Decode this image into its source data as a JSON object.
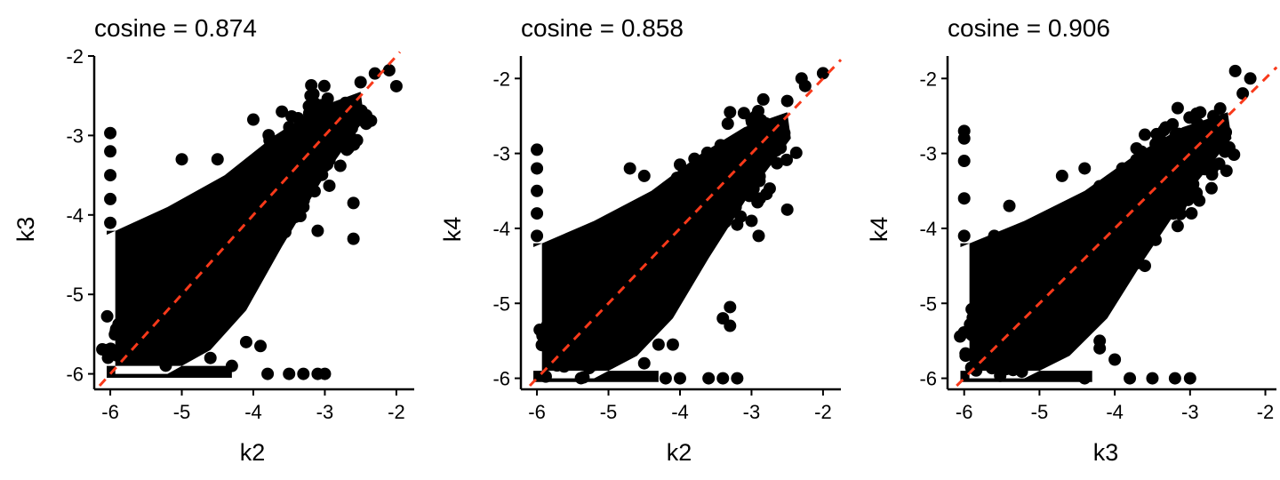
{
  "colors": {
    "points": "#000000",
    "reference_line": "#F8391A",
    "axis": "#000000",
    "background": "#FFFFFF"
  },
  "chart_data": [
    {
      "type": "scatter",
      "title": "cosine = 0.874",
      "xlabel": "k2",
      "ylabel": "k3",
      "xlim": [
        -6.15,
        -1.8
      ],
      "ylim": [
        -6.15,
        -2.0
      ],
      "xticks": [
        -6,
        -5,
        -4,
        -3,
        -2
      ],
      "yticks": [
        -6,
        -5,
        -4,
        -3,
        -2
      ],
      "xtick_labels": [
        "-6",
        "-5",
        "-4",
        "-3",
        "-2"
      ],
      "ytick_labels": [
        "-6",
        "-5",
        "-4",
        "-3",
        "-2"
      ],
      "reference_line": {
        "slope": 1,
        "intercept": 0,
        "style": "dashed"
      },
      "points": [
        [
          -6.0,
          -2.97
        ],
        [
          -6.0,
          -3.2
        ],
        [
          -6.0,
          -3.5
        ],
        [
          -6.0,
          -3.8
        ],
        [
          -6.0,
          -4.1
        ],
        [
          -2.0,
          -2.38
        ],
        [
          -2.1,
          -2.18
        ],
        [
          -2.3,
          -2.22
        ],
        [
          -2.5,
          -2.33
        ],
        [
          -2.7,
          -2.6
        ],
        [
          -4.0,
          -2.8
        ],
        [
          -3.6,
          -2.7
        ],
        [
          -3.2,
          -2.5
        ],
        [
          -4.5,
          -3.3
        ],
        [
          -5.0,
          -3.3
        ],
        [
          -3.1,
          -4.2
        ],
        [
          -2.6,
          -4.3
        ],
        [
          -2.6,
          -3.85
        ],
        [
          -3.0,
          -3.3
        ],
        [
          -3.3,
          -3.9
        ],
        [
          -4.6,
          -5.5
        ],
        [
          -4.6,
          -5.8
        ],
        [
          -4.3,
          -5.9
        ],
        [
          -4.1,
          -5.6
        ],
        [
          -3.9,
          -5.65
        ],
        [
          -3.5,
          -6.0
        ],
        [
          -3.3,
          -6.0
        ],
        [
          -3.1,
          -6.0
        ],
        [
          -3.0,
          -6.0
        ],
        [
          -3.8,
          -6.0
        ],
        [
          -5.0,
          -5.0
        ],
        [
          -4.5,
          -4.5
        ],
        [
          -4.0,
          -4.0
        ],
        [
          -3.5,
          -3.5
        ],
        [
          -5.5,
          -5.2
        ]
      ]
    },
    {
      "type": "scatter",
      "title": "cosine = 0.858",
      "xlabel": "k2",
      "ylabel": "k4",
      "xlim": [
        -6.15,
        -1.8
      ],
      "ylim": [
        -6.1,
        -1.7
      ],
      "xticks": [
        -6,
        -5,
        -4,
        -3,
        -2
      ],
      "yticks": [
        -6,
        -5,
        -4,
        -3,
        -2
      ],
      "xtick_labels": [
        "-6",
        "-5",
        "-4",
        "-3",
        "-2"
      ],
      "ytick_labels": [
        "-6",
        "-5",
        "-4",
        "-3",
        "-2"
      ],
      "reference_line": {
        "slope": 1,
        "intercept": 0,
        "style": "dashed"
      },
      "points": [
        [
          -6.0,
          -2.95
        ],
        [
          -6.0,
          -3.2
        ],
        [
          -6.0,
          -3.5
        ],
        [
          -6.0,
          -3.8
        ],
        [
          -6.0,
          -4.1
        ],
        [
          -2.0,
          -1.93
        ],
        [
          -2.3,
          -2.0
        ],
        [
          -2.25,
          -2.1
        ],
        [
          -2.5,
          -2.3
        ],
        [
          -2.8,
          -2.6
        ],
        [
          -3.3,
          -2.45
        ],
        [
          -3.0,
          -2.55
        ],
        [
          -4.7,
          -3.2
        ],
        [
          -4.0,
          -3.15
        ],
        [
          -4.5,
          -3.3
        ],
        [
          -2.5,
          -3.75
        ],
        [
          -2.9,
          -4.1
        ],
        [
          -3.0,
          -3.9
        ],
        [
          -3.2,
          -3.95
        ],
        [
          -3.3,
          -5.3
        ],
        [
          -3.4,
          -5.2
        ],
        [
          -3.3,
          -5.05
        ],
        [
          -4.1,
          -5.55
        ],
        [
          -4.3,
          -5.55
        ],
        [
          -4.5,
          -5.8
        ],
        [
          -3.4,
          -6.0
        ],
        [
          -3.2,
          -6.0
        ],
        [
          -3.6,
          -6.0
        ],
        [
          -4.0,
          -6.0
        ],
        [
          -4.2,
          -6.0
        ],
        [
          -5.0,
          -5.0
        ],
        [
          -4.5,
          -4.5
        ],
        [
          -4.0,
          -4.0
        ],
        [
          -3.5,
          -3.5
        ],
        [
          -5.5,
          -5.2
        ]
      ]
    },
    {
      "type": "scatter",
      "title": "cosine = 0.906",
      "xlabel": "k3",
      "ylabel": "k4",
      "xlim": [
        -6.15,
        -1.9
      ],
      "ylim": [
        -6.1,
        -1.7
      ],
      "xticks": [
        -6,
        -5,
        -4,
        -3,
        -2
      ],
      "yticks": [
        -6,
        -5,
        -4,
        -3,
        -2
      ],
      "xtick_labels": [
        "-6",
        "-5",
        "-4",
        "-3",
        "-2"
      ],
      "ytick_labels": [
        "-6",
        "-5",
        "-4",
        "-3",
        "-2"
      ],
      "reference_line": {
        "slope": 1,
        "intercept": 0,
        "style": "dashed"
      },
      "points": [
        [
          -6.0,
          -2.7
        ],
        [
          -6.0,
          -2.8
        ],
        [
          -6.0,
          -3.1
        ],
        [
          -6.0,
          -3.6
        ],
        [
          -6.0,
          -4.1
        ],
        [
          -2.4,
          -1.9
        ],
        [
          -2.2,
          -2.0
        ],
        [
          -2.3,
          -2.2
        ],
        [
          -2.6,
          -2.4
        ],
        [
          -2.9,
          -2.6
        ],
        [
          -3.6,
          -2.75
        ],
        [
          -3.4,
          -2.8
        ],
        [
          -3.9,
          -3.2
        ],
        [
          -4.4,
          -3.2
        ],
        [
          -4.7,
          -3.3
        ],
        [
          -5.4,
          -3.7
        ],
        [
          -5.6,
          -4.1
        ],
        [
          -5.5,
          -4.3
        ],
        [
          -2.9,
          -3.1
        ],
        [
          -3.6,
          -4.5
        ],
        [
          -4.2,
          -5.6
        ],
        [
          -4.0,
          -5.75
        ],
        [
          -4.6,
          -5.4
        ],
        [
          -4.4,
          -5.2
        ],
        [
          -4.2,
          -5.5
        ],
        [
          -3.5,
          -6.0
        ],
        [
          -3.2,
          -6.0
        ],
        [
          -3.0,
          -6.0
        ],
        [
          -3.8,
          -6.0
        ],
        [
          -4.4,
          -6.0
        ],
        [
          -5.0,
          -5.0
        ],
        [
          -4.5,
          -4.5
        ],
        [
          -4.0,
          -4.0
        ],
        [
          -3.5,
          -3.5
        ],
        [
          -5.5,
          -5.2
        ]
      ]
    }
  ]
}
